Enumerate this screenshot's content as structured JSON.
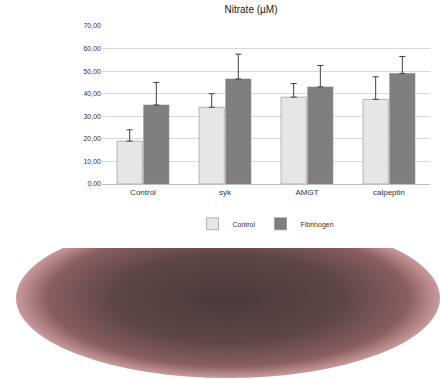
{
  "chart_data": {
    "type": "bar",
    "title": "Nitrate (µM)",
    "categories": [
      "Control",
      "syk",
      "AMGT",
      "calpeptin"
    ],
    "series": [
      {
        "name": "Control",
        "color": "#e6e6e6",
        "values": [
          19,
          34,
          38.5,
          37.5
        ],
        "error": [
          5,
          6,
          6,
          10
        ]
      },
      {
        "name": "Fibrinogen",
        "color": "#7f7f7f",
        "values": [
          35,
          46.5,
          43,
          49
        ],
        "error": [
          10,
          11,
          9.5,
          7.5
        ]
      }
    ],
    "ylim": [
      0,
      70
    ],
    "yticks": [
      {
        "value": 0,
        "label": "0,00"
      },
      {
        "value": 10,
        "label": "10,00"
      },
      {
        "value": 20,
        "label": "20,00"
      },
      {
        "value": 30,
        "label": "30,00"
      },
      {
        "value": 40,
        "label": "40,00"
      },
      {
        "value": 50,
        "label": "50,00"
      },
      {
        "value": 60,
        "label": "60,00"
      },
      {
        "value": 70,
        "label": "70,00"
      }
    ],
    "grid": true,
    "legend": "bottom"
  }
}
